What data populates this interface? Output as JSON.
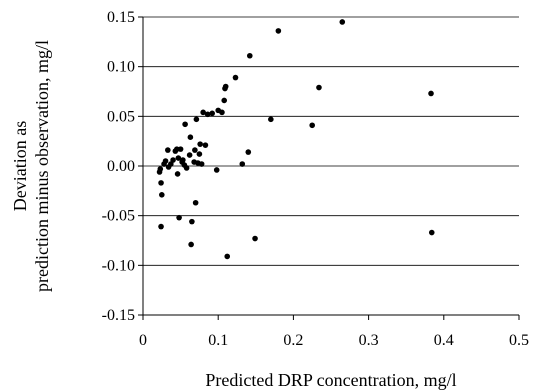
{
  "chart_data": {
    "type": "scatter",
    "title": "",
    "xlabel": "Predicted DRP concentration, mg/l",
    "ylabel_lines": [
      "Deviation as",
      "prediction minus observation, mg/l"
    ],
    "xlim": [
      0,
      0.5
    ],
    "ylim": [
      -0.15,
      0.15
    ],
    "x_ticks": [
      0,
      0.1,
      0.2,
      0.3,
      0.4,
      0.5
    ],
    "x_tick_labels": [
      "0",
      "0.1",
      "0.2",
      "0.3",
      "0.4",
      "0.5"
    ],
    "y_ticks": [
      -0.15,
      -0.1,
      -0.05,
      0.0,
      0.05,
      0.1,
      0.15
    ],
    "y_tick_labels": [
      "-0.15",
      "-0.10",
      "-0.05",
      "0.00",
      "0.05",
      "0.10",
      "0.15"
    ],
    "grid": "horizontal",
    "legend": "none",
    "colors": {
      "marker": "#000000",
      "grid": "#000000",
      "axis": "#000000"
    },
    "points": [
      {
        "x": 0.022,
        "y": -0.006
      },
      {
        "x": 0.023,
        "y": -0.003
      },
      {
        "x": 0.024,
        "y": -0.017
      },
      {
        "x": 0.025,
        "y": -0.029
      },
      {
        "x": 0.024,
        "y": -0.061
      },
      {
        "x": 0.028,
        "y": 0.002
      },
      {
        "x": 0.03,
        "y": 0.005
      },
      {
        "x": 0.033,
        "y": 0.016
      },
      {
        "x": 0.034,
        "y": -0.001
      },
      {
        "x": 0.037,
        "y": 0.002
      },
      {
        "x": 0.04,
        "y": 0.006
      },
      {
        "x": 0.043,
        "y": 0.015
      },
      {
        "x": 0.045,
        "y": 0.017
      },
      {
        "x": 0.046,
        "y": -0.008
      },
      {
        "x": 0.047,
        "y": 0.008
      },
      {
        "x": 0.048,
        "y": -0.052
      },
      {
        "x": 0.05,
        "y": 0.017
      },
      {
        "x": 0.052,
        "y": 0.004
      },
      {
        "x": 0.053,
        "y": 0.006
      },
      {
        "x": 0.055,
        "y": 0.001
      },
      {
        "x": 0.056,
        "y": 0.042
      },
      {
        "x": 0.058,
        "y": -0.002
      },
      {
        "x": 0.062,
        "y": 0.011
      },
      {
        "x": 0.063,
        "y": 0.029
      },
      {
        "x": 0.064,
        "y": -0.079
      },
      {
        "x": 0.065,
        "y": -0.056
      },
      {
        "x": 0.068,
        "y": 0.004
      },
      {
        "x": 0.069,
        "y": 0.016
      },
      {
        "x": 0.07,
        "y": -0.037
      },
      {
        "x": 0.071,
        "y": 0.047
      },
      {
        "x": 0.073,
        "y": 0.003
      },
      {
        "x": 0.075,
        "y": 0.012
      },
      {
        "x": 0.076,
        "y": 0.022
      },
      {
        "x": 0.078,
        "y": 0.002
      },
      {
        "x": 0.08,
        "y": 0.054
      },
      {
        "x": 0.083,
        "y": 0.021
      },
      {
        "x": 0.086,
        "y": 0.052
      },
      {
        "x": 0.092,
        "y": 0.053
      },
      {
        "x": 0.098,
        "y": -0.004
      },
      {
        "x": 0.1,
        "y": 0.056
      },
      {
        "x": 0.105,
        "y": 0.054
      },
      {
        "x": 0.108,
        "y": 0.066
      },
      {
        "x": 0.109,
        "y": 0.078
      },
      {
        "x": 0.11,
        "y": 0.08
      },
      {
        "x": 0.112,
        "y": -0.091
      },
      {
        "x": 0.123,
        "y": 0.089
      },
      {
        "x": 0.132,
        "y": 0.002
      },
      {
        "x": 0.14,
        "y": 0.014
      },
      {
        "x": 0.142,
        "y": 0.111
      },
      {
        "x": 0.149,
        "y": -0.073
      },
      {
        "x": 0.17,
        "y": 0.047
      },
      {
        "x": 0.18,
        "y": 0.136
      },
      {
        "x": 0.225,
        "y": 0.041
      },
      {
        "x": 0.234,
        "y": 0.079
      },
      {
        "x": 0.265,
        "y": 0.145
      },
      {
        "x": 0.383,
        "y": 0.073
      },
      {
        "x": 0.384,
        "y": -0.067
      }
    ]
  }
}
